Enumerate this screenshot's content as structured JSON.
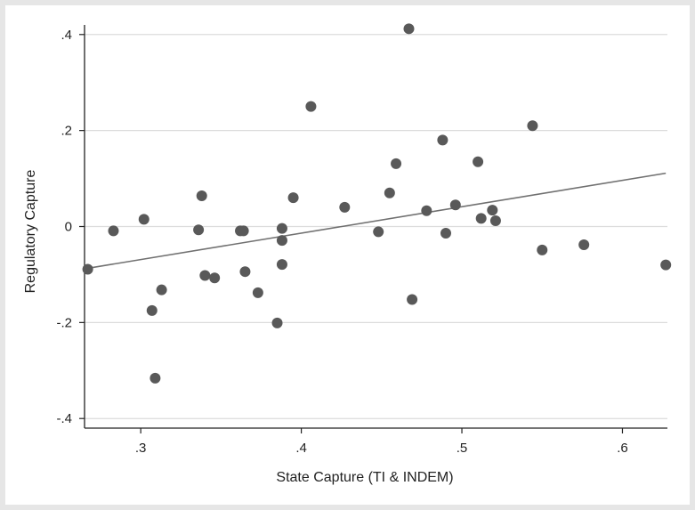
{
  "chart_data": {
    "type": "scatter",
    "xlabel": "State Capture (TI & INDEM)",
    "ylabel": "Regulatory Capture",
    "xlim": [
      0.265,
      0.628
    ],
    "ylim": [
      -0.42,
      0.42
    ],
    "x_ticks": [
      {
        "value": 0.3,
        "label": ".3"
      },
      {
        "value": 0.4,
        "label": ".4"
      },
      {
        "value": 0.5,
        "label": ".5"
      },
      {
        "value": 0.6,
        "label": ".6"
      }
    ],
    "y_ticks": [
      {
        "value": -0.4,
        "label": "-.4"
      },
      {
        "value": -0.2,
        "label": "-.2"
      },
      {
        "value": 0,
        "label": "0"
      },
      {
        "value": 0.2,
        "label": ".2"
      },
      {
        "value": 0.4,
        "label": ".4"
      }
    ],
    "grid": "horizontal",
    "points": [
      {
        "x": 0.267,
        "y": -0.089
      },
      {
        "x": 0.283,
        "y": -0.009
      },
      {
        "x": 0.302,
        "y": 0.015
      },
      {
        "x": 0.307,
        "y": -0.175
      },
      {
        "x": 0.309,
        "y": -0.316
      },
      {
        "x": 0.313,
        "y": -0.132
      },
      {
        "x": 0.336,
        "y": -0.007
      },
      {
        "x": 0.338,
        "y": 0.064
      },
      {
        "x": 0.34,
        "y": -0.102
      },
      {
        "x": 0.346,
        "y": -0.107
      },
      {
        "x": 0.362,
        "y": -0.009
      },
      {
        "x": 0.364,
        "y": -0.009
      },
      {
        "x": 0.365,
        "y": -0.094
      },
      {
        "x": 0.373,
        "y": -0.138
      },
      {
        "x": 0.385,
        "y": -0.201
      },
      {
        "x": 0.388,
        "y": -0.004
      },
      {
        "x": 0.388,
        "y": -0.029
      },
      {
        "x": 0.388,
        "y": -0.079
      },
      {
        "x": 0.395,
        "y": 0.06
      },
      {
        "x": 0.406,
        "y": 0.25
      },
      {
        "x": 0.427,
        "y": 0.04
      },
      {
        "x": 0.448,
        "y": -0.011
      },
      {
        "x": 0.455,
        "y": 0.07
      },
      {
        "x": 0.459,
        "y": 0.131
      },
      {
        "x": 0.467,
        "y": 0.412
      },
      {
        "x": 0.469,
        "y": -0.152
      },
      {
        "x": 0.478,
        "y": 0.033
      },
      {
        "x": 0.488,
        "y": 0.18
      },
      {
        "x": 0.49,
        "y": -0.014
      },
      {
        "x": 0.496,
        "y": 0.045
      },
      {
        "x": 0.51,
        "y": 0.135
      },
      {
        "x": 0.512,
        "y": 0.017
      },
      {
        "x": 0.519,
        "y": 0.034
      },
      {
        "x": 0.521,
        "y": 0.012
      },
      {
        "x": 0.544,
        "y": 0.21
      },
      {
        "x": 0.55,
        "y": -0.049
      },
      {
        "x": 0.576,
        "y": -0.038
      },
      {
        "x": 0.627,
        "y": -0.08
      }
    ],
    "fit_line": {
      "x": [
        0.267,
        0.627
      ],
      "y": [
        -0.087,
        0.111
      ]
    },
    "colors": {
      "background": "#e6e6e6",
      "plot_background": "#ffffff",
      "grid": "#dcdcdc",
      "marker": "#595959",
      "fit_line": "#707070",
      "axis": "#222222"
    }
  }
}
